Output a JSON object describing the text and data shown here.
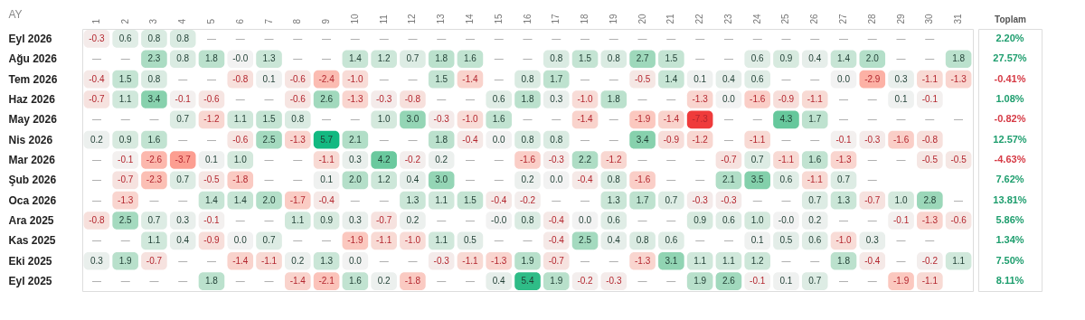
{
  "chart_data": {
    "type": "heatmap",
    "ylabel": "AY",
    "y2label": "Toplam",
    "categories": [
      "1",
      "2",
      "3",
      "4",
      "5",
      "6",
      "7",
      "8",
      "9",
      "10",
      "11",
      "12",
      "13",
      "14",
      "15",
      "16",
      "17",
      "18",
      "19",
      "20",
      "21",
      "22",
      "23",
      "24",
      "25",
      "26",
      "27",
      "28",
      "29",
      "30",
      "31"
    ],
    "y_categories": [
      "Eyl 2026",
      "Ağu 2026",
      "Tem 2026",
      "Haz 2026",
      "May 2026",
      "Nis 2026",
      "Mar 2026",
      "Şub 2026",
      "Oca 2026",
      "Ara 2025",
      "Kas 2025",
      "Eki 2025",
      "Eyl 2025"
    ],
    "y2_categories": [
      "2.20%",
      "27.57%",
      "-0.41%",
      "1.08%",
      "-0.82%",
      "12.57%",
      "-4.63%",
      "7.62%",
      "13.81%",
      "5.86%",
      "1.34%",
      "7.50%",
      "8.11%"
    ],
    "cells": [
      [
        -0.3,
        0.6,
        0.8,
        0.8,
        null,
        null,
        null,
        null,
        null,
        null,
        null,
        null,
        null,
        null,
        null,
        null,
        null,
        null,
        null,
        null,
        null,
        null,
        null,
        null,
        null,
        null,
        null,
        null,
        null,
        null,
        null
      ],
      [
        null,
        null,
        2.3,
        0.8,
        1.8,
        -0.0,
        1.3,
        null,
        null,
        1.4,
        1.2,
        0.7,
        1.8,
        1.6,
        null,
        null,
        0.8,
        1.5,
        0.8,
        2.7,
        1.5,
        null,
        null,
        0.6,
        0.9,
        0.4,
        1.4,
        2.0,
        null,
        null,
        1.8
      ],
      [
        -0.4,
        1.5,
        0.8,
        null,
        null,
        -0.8,
        0.1,
        -0.6,
        -2.4,
        -1.0,
        null,
        null,
        1.5,
        -1.4,
        null,
        0.8,
        1.7,
        null,
        null,
        -0.5,
        1.4,
        0.1,
        0.4,
        0.6,
        null,
        null,
        0.0,
        -2.9,
        0.3,
        -1.1,
        -1.3
      ],
      [
        -0.7,
        1.1,
        3.4,
        -0.1,
        -0.6,
        null,
        null,
        -0.6,
        2.6,
        -1.3,
        -0.3,
        -0.8,
        null,
        null,
        0.6,
        1.8,
        0.3,
        -1.0,
        1.8,
        null,
        null,
        -1.3,
        0.0,
        -1.6,
        -0.9,
        -1.1,
        null,
        null,
        0.1,
        -0.1,
        null
      ],
      [
        null,
        null,
        null,
        0.7,
        -1.2,
        1.1,
        1.5,
        0.8,
        null,
        null,
        1.0,
        3.0,
        -0.3,
        -1.0,
        1.6,
        null,
        null,
        -1.4,
        null,
        -1.9,
        -1.4,
        -7.3,
        null,
        null,
        4.3,
        1.7,
        null,
        null,
        null,
        null,
        null
      ],
      [
        0.2,
        0.9,
        1.6,
        null,
        null,
        -0.6,
        2.5,
        -1.3,
        5.7,
        2.1,
        null,
        null,
        1.8,
        -0.4,
        0.0,
        0.8,
        0.8,
        null,
        null,
        3.4,
        -0.9,
        -1.2,
        null,
        -1.1,
        null,
        null,
        -0.1,
        -0.3,
        -1.6,
        -0.8,
        null
      ],
      [
        null,
        -0.1,
        -2.6,
        -3.7,
        0.1,
        1.0,
        null,
        null,
        -1.1,
        0.3,
        4.2,
        -0.2,
        0.2,
        null,
        null,
        -1.6,
        -0.3,
        2.2,
        -1.2,
        null,
        null,
        null,
        -0.7,
        0.7,
        -1.1,
        1.6,
        -1.3,
        null,
        null,
        -0.5,
        -0.5
      ],
      [
        null,
        -0.7,
        -2.3,
        0.7,
        -0.5,
        -1.8,
        null,
        null,
        0.1,
        2.0,
        1.2,
        0.4,
        3.0,
        null,
        null,
        0.2,
        0.0,
        -0.4,
        0.8,
        -1.6,
        null,
        null,
        2.1,
        3.5,
        0.6,
        -1.1,
        0.7,
        null,
        null,
        null,
        null
      ],
      [
        null,
        -1.3,
        null,
        null,
        1.4,
        1.4,
        2.0,
        -1.7,
        -0.4,
        null,
        null,
        1.3,
        1.1,
        1.5,
        -0.4,
        -0.2,
        null,
        null,
        1.3,
        1.7,
        0.7,
        -0.3,
        -0.3,
        null,
        null,
        0.7,
        1.3,
        -0.7,
        1.0,
        2.8,
        null
      ],
      [
        -0.8,
        2.5,
        0.7,
        0.3,
        -0.1,
        null,
        null,
        1.1,
        0.9,
        0.3,
        -0.7,
        0.2,
        null,
        null,
        -0.0,
        0.8,
        -0.4,
        0.0,
        0.6,
        null,
        null,
        0.9,
        0.6,
        1.0,
        -0.0,
        0.2,
        null,
        null,
        -0.1,
        -1.3,
        -0.6
      ],
      [
        null,
        null,
        1.1,
        0.4,
        -0.9,
        0.0,
        0.7,
        null,
        null,
        -1.9,
        -1.1,
        -1.0,
        1.1,
        0.5,
        null,
        null,
        -0.4,
        2.5,
        0.4,
        0.8,
        0.6,
        null,
        null,
        0.1,
        0.5,
        0.6,
        -1.0,
        0.3,
        null,
        null,
        null
      ],
      [
        0.3,
        1.9,
        -0.7,
        null,
        null,
        -1.4,
        -1.1,
        0.2,
        1.3,
        0.0,
        null,
        null,
        -0.3,
        -1.1,
        -1.3,
        1.9,
        -0.7,
        null,
        null,
        -1.3,
        3.1,
        1.1,
        1.1,
        1.2,
        null,
        null,
        1.8,
        -0.4,
        null,
        -0.2,
        1.1
      ],
      [
        null,
        null,
        null,
        null,
        1.8,
        null,
        null,
        -1.4,
        -2.1,
        1.6,
        0.2,
        -1.8,
        null,
        null,
        0.4,
        5.4,
        1.9,
        -0.2,
        -0.3,
        null,
        null,
        1.9,
        2.6,
        -0.1,
        0.1,
        0.7,
        null,
        null,
        -1.9,
        -1.1,
        null
      ]
    ],
    "cell_labels": [
      [
        "-0.3",
        "0.6",
        "0.8",
        "0.8",
        "—",
        "—",
        "—",
        "—",
        "—",
        "—",
        "—",
        "—",
        "—",
        "—",
        "—",
        "—",
        "—",
        "—",
        "—",
        "—",
        "—",
        "—",
        "—",
        "—",
        "—",
        "—",
        "—",
        "—",
        "—",
        "—",
        null
      ],
      [
        "—",
        "—",
        "2.3",
        "0.8",
        "1.8",
        "-0.0",
        "1.3",
        "—",
        "—",
        "1.4",
        "1.2",
        "0.7",
        "1.8",
        "1.6",
        "—",
        "—",
        "0.8",
        "1.5",
        "0.8",
        "2.7",
        "1.5",
        "—",
        "—",
        "0.6",
        "0.9",
        "0.4",
        "1.4",
        "2.0",
        "—",
        "—",
        "1.8"
      ],
      [
        "-0.4",
        "1.5",
        "0.8",
        "—",
        "—",
        "-0.8",
        "0.1",
        "-0.6",
        "-2.4",
        "-1.0",
        "—",
        "—",
        "1.5",
        "-1.4",
        "—",
        "0.8",
        "1.7",
        "—",
        "—",
        "-0.5",
        "1.4",
        "0.1",
        "0.4",
        "0.6",
        "—",
        "—",
        "0.0",
        "-2.9",
        "0.3",
        "-1.1",
        "-1.3"
      ],
      [
        "-0.7",
        "1.1",
        "3.4",
        "-0.1",
        "-0.6",
        "—",
        "—",
        "-0.6",
        "2.6",
        "-1.3",
        "-0.3",
        "-0.8",
        "—",
        "—",
        "0.6",
        "1.8",
        "0.3",
        "-1.0",
        "1.8",
        "—",
        "—",
        "-1.3",
        "0.0",
        "-1.6",
        "-0.9",
        "-1.1",
        "—",
        "—",
        "0.1",
        "-0.1",
        null
      ],
      [
        "—",
        "—",
        "—",
        "0.7",
        "-1.2",
        "1.1",
        "1.5",
        "0.8",
        "—",
        "—",
        "1.0",
        "3.0",
        "-0.3",
        "-1.0",
        "1.6",
        "—",
        "—",
        "-1.4",
        "—",
        "-1.9",
        "-1.4",
        "-7.3",
        "—",
        "—",
        "4.3",
        "1.7",
        "—",
        "—",
        "—",
        "—",
        "—"
      ],
      [
        "0.2",
        "0.9",
        "1.6",
        "—",
        "—",
        "-0.6",
        "2.5",
        "-1.3",
        "5.7",
        "2.1",
        "—",
        "—",
        "1.8",
        "-0.4",
        "0.0",
        "0.8",
        "0.8",
        "—",
        "—",
        "3.4",
        "-0.9",
        "-1.2",
        "—",
        "-1.1",
        "—",
        "—",
        "-0.1",
        "-0.3",
        "-1.6",
        "-0.8",
        null
      ],
      [
        "—",
        "-0.1",
        "-2.6",
        "-3.7",
        "0.1",
        "1.0",
        "—",
        "—",
        "-1.1",
        "0.3",
        "4.2",
        "-0.2",
        "0.2",
        "—",
        "—",
        "-1.6",
        "-0.3",
        "2.2",
        "-1.2",
        "—",
        "—",
        "—",
        "-0.7",
        "0.7",
        "-1.1",
        "1.6",
        "-1.3",
        "—",
        "—",
        "-0.5",
        "-0.5"
      ],
      [
        "—",
        "-0.7",
        "-2.3",
        "0.7",
        "-0.5",
        "-1.8",
        "—",
        "—",
        "0.1",
        "2.0",
        "1.2",
        "0.4",
        "3.0",
        "—",
        "—",
        "0.2",
        "0.0",
        "-0.4",
        "0.8",
        "-1.6",
        "—",
        "—",
        "2.1",
        "3.5",
        "0.6",
        "-1.1",
        "0.7",
        "—",
        null,
        null,
        null
      ],
      [
        "—",
        "-1.3",
        "—",
        "—",
        "1.4",
        "1.4",
        "2.0",
        "-1.7",
        "-0.4",
        "—",
        "—",
        "1.3",
        "1.1",
        "1.5",
        "-0.4",
        "-0.2",
        "—",
        "—",
        "1.3",
        "1.7",
        "0.7",
        "-0.3",
        "-0.3",
        "—",
        "—",
        "0.7",
        "1.3",
        "-0.7",
        "1.0",
        "2.8",
        "—"
      ],
      [
        "-0.8",
        "2.5",
        "0.7",
        "0.3",
        "-0.1",
        "—",
        "—",
        "1.1",
        "0.9",
        "0.3",
        "-0.7",
        "0.2",
        "—",
        "—",
        "-0.0",
        "0.8",
        "-0.4",
        "0.0",
        "0.6",
        "—",
        "—",
        "0.9",
        "0.6",
        "1.0",
        "-0.0",
        "0.2",
        "—",
        "—",
        "-0.1",
        "-1.3",
        "-0.6"
      ],
      [
        "—",
        "—",
        "1.1",
        "0.4",
        "-0.9",
        "0.0",
        "0.7",
        "—",
        "—",
        "-1.9",
        "-1.1",
        "-1.0",
        "1.1",
        "0.5",
        "—",
        "—",
        "-0.4",
        "2.5",
        "0.4",
        "0.8",
        "0.6",
        "—",
        "—",
        "0.1",
        "0.5",
        "0.6",
        "-1.0",
        "0.3",
        "—",
        "—",
        null
      ],
      [
        "0.3",
        "1.9",
        "-0.7",
        "—",
        "—",
        "-1.4",
        "-1.1",
        "0.2",
        "1.3",
        "0.0",
        "—",
        "—",
        "-0.3",
        "-1.1",
        "-1.3",
        "1.9",
        "-0.7",
        "—",
        "—",
        "-1.3",
        "3.1",
        "1.1",
        "1.1",
        "1.2",
        "—",
        "—",
        "1.8",
        "-0.4",
        "—",
        "-0.2",
        "1.1"
      ],
      [
        "—",
        "—",
        "—",
        "—",
        "1.8",
        "—",
        "—",
        "-1.4",
        "-2.1",
        "1.6",
        "0.2",
        "-1.8",
        "—",
        "—",
        "0.4",
        "5.4",
        "1.9",
        "-0.2",
        "-0.3",
        "—",
        "—",
        "1.9",
        "2.6",
        "-0.1",
        "0.1",
        "0.7",
        "—",
        "—",
        "-1.9",
        "-1.1",
        null
      ]
    ]
  }
}
